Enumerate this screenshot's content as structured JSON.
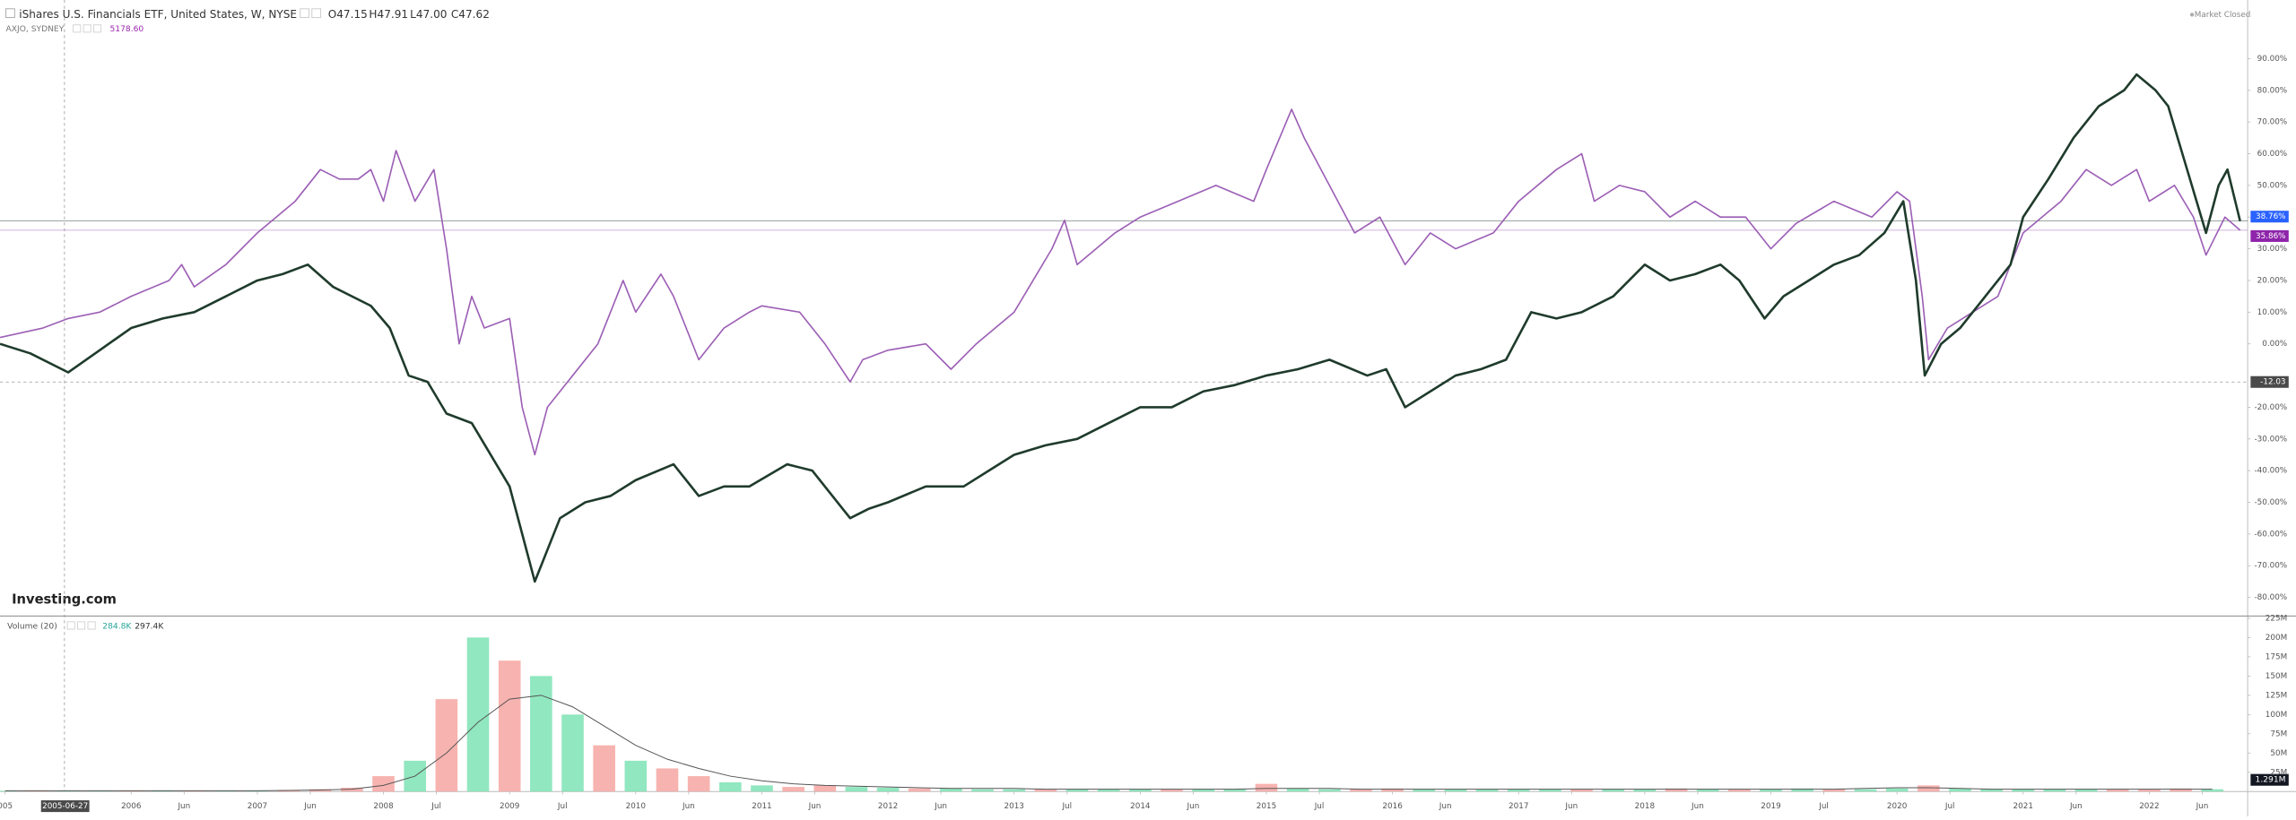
{
  "header": {
    "status": "Market Closed",
    "logo": "Investing.com"
  },
  "chart_data": [
    {
      "type": "line",
      "xlim": [
        2004.96,
        2022.78
      ],
      "xticks": [
        {
          "value": 2005,
          "label": "005"
        },
        2006,
        {
          "value": 2006.42,
          "label": "Jun"
        },
        2007,
        {
          "value": 2007.42,
          "label": "Jun"
        },
        2008,
        {
          "value": 2008.42,
          "label": "Jul"
        },
        2009,
        {
          "value": 2009.42,
          "label": "Jul"
        },
        2010,
        {
          "value": 2010.42,
          "label": "Jun"
        },
        2011,
        {
          "value": 2011.42,
          "label": "Jun"
        },
        2012,
        {
          "value": 2012.42,
          "label": "Jun"
        },
        2013,
        {
          "value": 2013.42,
          "label": "Jul"
        },
        2014,
        {
          "value": 2014.42,
          "label": "Jun"
        },
        2015,
        {
          "value": 2015.42,
          "label": "Jul"
        },
        2016,
        {
          "value": 2016.42,
          "label": "Jun"
        },
        2017,
        {
          "value": 2017.42,
          "label": "Jun"
        },
        2018,
        {
          "value": 2018.42,
          "label": "Jun"
        },
        2019,
        {
          "value": 2019.42,
          "label": "Jul"
        },
        2020,
        {
          "value": 2020.42,
          "label": "Jul"
        },
        2021,
        {
          "value": 2021.42,
          "label": "Jun"
        },
        2022,
        {
          "value": 2022.42,
          "label": "Jun"
        }
      ],
      "ylim": [
        -85.4,
        108.5
      ],
      "yticks": [
        {
          "value": 90,
          "label": "90.00%"
        },
        {
          "value": 80,
          "label": "80.00%"
        },
        {
          "value": 70,
          "label": "70.00%"
        },
        {
          "value": 60,
          "label": "60.00%"
        },
        {
          "value": 50,
          "label": "50.00%"
        },
        {
          "value": 40,
          "label": "40.00%"
        },
        {
          "value": 30,
          "label": "30.00%"
        },
        {
          "value": 20,
          "label": "20.00%"
        },
        {
          "value": 10,
          "label": "10.00%"
        },
        {
          "value": 0,
          "label": "0.00%"
        },
        {
          "value": -20,
          "label": "-20.00%"
        },
        {
          "value": -30,
          "label": "-30.00%"
        },
        {
          "value": -40,
          "label": "-40.00%"
        },
        {
          "value": -50,
          "label": "-50.00%"
        },
        {
          "value": -60,
          "label": "-60.00%"
        },
        {
          "value": -70,
          "label": "-70.00%"
        },
        {
          "value": -80,
          "label": "-80.00%"
        }
      ],
      "crosshair": {
        "value": -12.03,
        "label": "-12.03",
        "date": "2005-06-27"
      },
      "series": [
        {
          "name": "iShares U.S. Financials ETF, United States, W, NYSE",
          "legend_values": [
            "O47.15",
            "H47.91",
            "L47.00",
            "C47.62"
          ],
          "color": "#1f3b2c",
          "label_color": "#2962ff",
          "last_label": "38.76%",
          "x": [
            2004.96,
            2005.2,
            2005.5,
            2005.75,
            2006.0,
            2006.25,
            2006.5,
            2006.75,
            2007.0,
            2007.2,
            2007.4,
            2007.6,
            2007.9,
            2008.05,
            2008.2,
            2008.35,
            2008.5,
            2008.7,
            2008.85,
            2009.0,
            2009.1,
            2009.2,
            2009.3,
            2009.4,
            2009.6,
            2009.8,
            2010.0,
            2010.3,
            2010.5,
            2010.7,
            2010.9,
            2011.2,
            2011.4,
            2011.6,
            2011.7,
            2011.85,
            2012.0,
            2012.3,
            2012.6,
            2012.8,
            2013.0,
            2013.25,
            2013.5,
            2013.75,
            2014.0,
            2014.25,
            2014.5,
            2014.75,
            2015.0,
            2015.25,
            2015.5,
            2015.8,
            2015.95,
            2016.1,
            2016.3,
            2016.5,
            2016.7,
            2016.9,
            2017.1,
            2017.3,
            2017.5,
            2017.75,
            2018.0,
            2018.2,
            2018.4,
            2018.6,
            2018.75,
            2018.95,
            2019.1,
            2019.3,
            2019.5,
            2019.7,
            2019.9,
            2020.05,
            2020.15,
            2020.22,
            2020.35,
            2020.5,
            2020.7,
            2020.9,
            2021.0,
            2021.2,
            2021.4,
            2021.6,
            2021.8,
            2021.9,
            2022.05,
            2022.15,
            2022.3,
            2022.45,
            2022.55,
            2022.62,
            2022.72
          ],
          "values": [
            0,
            -3,
            -9,
            -2,
            5,
            8,
            10,
            15,
            20,
            22,
            25,
            18,
            12,
            5,
            -10,
            -12,
            -22,
            -25,
            -35,
            -45,
            -60,
            -75,
            -65,
            -55,
            -50,
            -48,
            -43,
            -38,
            -48,
            -45,
            -45,
            -38,
            -40,
            -50,
            -55,
            -52,
            -50,
            -45,
            -45,
            -40,
            -35,
            -32,
            -30,
            -25,
            -20,
            -20,
            -15,
            -13,
            -10,
            -8,
            -5,
            -10,
            -8,
            -20,
            -15,
            -10,
            -8,
            -5,
            10,
            8,
            10,
            15,
            25,
            20,
            22,
            25,
            20,
            8,
            15,
            20,
            25,
            28,
            35,
            45,
            20,
            -10,
            0,
            5,
            15,
            25,
            40,
            52,
            65,
            75,
            80,
            85,
            80,
            75,
            55,
            35,
            50,
            55,
            38.76
          ]
        },
        {
          "name": "AXJO, SYDNEY",
          "legend_values": [
            "5178.60"
          ],
          "color": "#9c5fb5",
          "label_color": "#8e24aa",
          "last_label": "35.86%",
          "x": [
            2004.96,
            2005.3,
            2005.5,
            2005.75,
            2006.0,
            2006.3,
            2006.4,
            2006.5,
            2006.75,
            2007.0,
            2007.3,
            2007.5,
            2007.65,
            2007.8,
            2007.9,
            2008.0,
            2008.1,
            2008.25,
            2008.4,
            2008.5,
            2008.6,
            2008.7,
            2008.8,
            2009.0,
            2009.1,
            2009.2,
            2009.3,
            2009.5,
            2009.7,
            2009.9,
            2010.0,
            2010.2,
            2010.3,
            2010.5,
            2010.7,
            2010.9,
            2011.0,
            2011.3,
            2011.5,
            2011.7,
            2011.8,
            2012.0,
            2012.3,
            2012.5,
            2012.7,
            2013.0,
            2013.3,
            2013.4,
            2013.5,
            2013.8,
            2014.0,
            2014.3,
            2014.6,
            2014.9,
            2015.0,
            2015.2,
            2015.3,
            2015.5,
            2015.7,
            2015.9,
            2016.1,
            2016.3,
            2016.5,
            2016.8,
            2017.0,
            2017.3,
            2017.5,
            2017.6,
            2017.8,
            2018.0,
            2018.2,
            2018.4,
            2018.6,
            2018.8,
            2019.0,
            2019.2,
            2019.5,
            2019.8,
            2020.0,
            2020.1,
            2020.2,
            2020.25,
            2020.4,
            2020.6,
            2020.8,
            2020.9,
            2021.0,
            2021.3,
            2021.5,
            2021.7,
            2021.9,
            2022.0,
            2022.2,
            2022.35,
            2022.45,
            2022.6,
            2022.72
          ],
          "values": [
            2,
            5,
            8,
            10,
            15,
            20,
            25,
            18,
            25,
            35,
            45,
            55,
            52,
            52,
            55,
            45,
            61,
            45,
            55,
            30,
            0,
            15,
            5,
            8,
            -20,
            -35,
            -20,
            -10,
            0,
            20,
            10,
            22,
            15,
            -5,
            5,
            10,
            12,
            10,
            0,
            -12,
            -5,
            -2,
            0,
            -8,
            0,
            10,
            30,
            39,
            25,
            35,
            40,
            45,
            50,
            45,
            55,
            74,
            65,
            50,
            35,
            40,
            25,
            35,
            30,
            35,
            45,
            55,
            60,
            45,
            50,
            48,
            40,
            45,
            40,
            40,
            30,
            38,
            45,
            40,
            48,
            45,
            15,
            -5,
            5,
            10,
            15,
            25,
            35,
            45,
            55,
            50,
            55,
            45,
            50,
            40,
            28,
            40,
            35.86
          ]
        }
      ]
    },
    {
      "type": "bar",
      "title": "Volume (20)",
      "legend_values": [
        "284.8K",
        "297.4K"
      ],
      "last_label": "1.291M",
      "ylim": [
        0,
        228
      ],
      "yticks": [
        {
          "value": 225,
          "label": "225M"
        },
        {
          "value": 200,
          "label": "200M"
        },
        {
          "value": 175,
          "label": "175M"
        },
        {
          "value": 150,
          "label": "150M"
        },
        {
          "value": 125,
          "label": "125M"
        },
        {
          "value": 100,
          "label": "100M"
        },
        {
          "value": 75,
          "label": "75M"
        },
        {
          "value": 50,
          "label": "50M"
        },
        {
          "value": 25,
          "label": "25M"
        }
      ],
      "x": [
        2005.0,
        2005.25,
        2005.5,
        2005.75,
        2006.0,
        2006.25,
        2006.5,
        2006.75,
        2007.0,
        2007.25,
        2007.5,
        2007.75,
        2008.0,
        2008.25,
        2008.5,
        2008.75,
        2009.0,
        2009.25,
        2009.5,
        2009.75,
        2010.0,
        2010.25,
        2010.5,
        2010.75,
        2011.0,
        2011.25,
        2011.5,
        2011.75,
        2012.0,
        2012.25,
        2012.5,
        2012.75,
        2013.0,
        2013.25,
        2013.5,
        2013.75,
        2014.0,
        2014.25,
        2014.5,
        2014.75,
        2015.0,
        2015.25,
        2015.5,
        2015.75,
        2016.0,
        2016.25,
        2016.5,
        2016.75,
        2017.0,
        2017.25,
        2017.5,
        2017.75,
        2018.0,
        2018.25,
        2018.5,
        2018.75,
        2019.0,
        2019.25,
        2019.5,
        2019.75,
        2020.0,
        2020.25,
        2020.5,
        2020.75,
        2021.0,
        2021.25,
        2021.5,
        2021.75,
        2022.0,
        2022.25,
        2022.5
      ],
      "values": [
        1,
        1,
        1,
        1,
        1,
        1.5,
        1,
        1,
        1,
        2,
        3,
        5,
        20,
        40,
        120,
        200,
        170,
        150,
        100,
        60,
        40,
        30,
        20,
        12,
        8,
        6,
        8,
        6,
        5,
        4,
        4,
        3,
        3,
        3,
        3,
        3,
        3,
        3,
        3,
        3,
        10,
        4,
        3,
        3,
        4,
        3,
        3,
        3,
        3,
        3,
        3,
        3,
        3,
        4,
        3,
        3,
        3,
        4,
        3,
        3,
        4,
        8,
        4,
        3,
        3,
        3,
        3,
        3,
        3,
        4,
        3
      ],
      "colors": [
        "#7ee3b4",
        "#f6a6a2",
        "#7ee3b4",
        "#7ee3b4",
        "#f6a6a2",
        "#7ee3b4",
        "#f6a6a2",
        "#7ee3b4",
        "#7ee3b4",
        "#f6a6a2",
        "#f6a6a2",
        "#f6a6a2",
        "#f6a6a2",
        "#7ee3b4",
        "#f6a6a2",
        "#7ee3b4",
        "#f6a6a2",
        "#7ee3b4",
        "#7ee3b4",
        "#f6a6a2",
        "#7ee3b4",
        "#f6a6a2",
        "#f6a6a2",
        "#7ee3b4",
        "#7ee3b4",
        "#f6a6a2",
        "#f6a6a2",
        "#7ee3b4",
        "#7ee3b4",
        "#f6a6a2",
        "#7ee3b4",
        "#7ee3b4",
        "#7ee3b4",
        "#f6a6a2",
        "#7ee3b4",
        "#7ee3b4",
        "#7ee3b4",
        "#f6a6a2",
        "#7ee3b4",
        "#7ee3b4",
        "#f6a6a2",
        "#7ee3b4",
        "#7ee3b4",
        "#f6a6a2",
        "#f6a6a2",
        "#7ee3b4",
        "#7ee3b4",
        "#7ee3b4",
        "#7ee3b4",
        "#7ee3b4",
        "#f6a6a2",
        "#7ee3b4",
        "#7ee3b4",
        "#f6a6a2",
        "#7ee3b4",
        "#f6a6a2",
        "#7ee3b4",
        "#7ee3b4",
        "#f6a6a2",
        "#7ee3b4",
        "#7ee3b4",
        "#f6a6a2",
        "#7ee3b4",
        "#7ee3b4",
        "#7ee3b4",
        "#7ee3b4",
        "#7ee3b4",
        "#f6a6a2",
        "#f6a6a2",
        "#f6a6a2",
        "#7ee3b4"
      ],
      "ma": {
        "color": "#555555",
        "values": [
          1,
          1,
          1,
          1,
          1,
          1,
          1,
          1,
          1,
          1.5,
          2,
          3,
          8,
          20,
          50,
          90,
          120,
          125,
          110,
          85,
          60,
          42,
          30,
          20,
          14,
          10,
          8,
          7,
          6,
          5,
          4,
          4,
          4,
          3,
          3,
          3,
          3,
          3,
          3,
          3,
          4,
          4,
          4,
          3,
          3,
          3,
          3,
          3,
          3,
          3,
          3,
          3,
          3,
          3,
          3,
          3,
          3,
          3,
          3,
          4,
          5,
          5,
          4,
          3,
          3,
          3,
          3,
          3,
          3,
          3,
          3
        ]
      }
    }
  ]
}
